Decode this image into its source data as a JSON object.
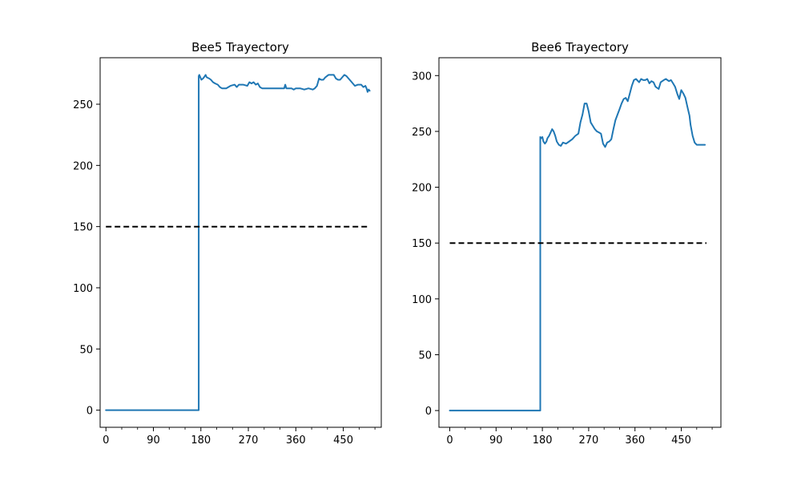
{
  "chart_data": [
    {
      "type": "line",
      "title": "Bee5 Trayectory",
      "xlabel": "",
      "ylabel": "",
      "xlim": [
        -11,
        522
      ],
      "ylim": [
        -14,
        288
      ],
      "x_ticks": [
        0,
        90,
        180,
        270,
        360,
        450
      ],
      "x_minor_ticks": [
        30,
        60,
        120,
        150,
        210,
        240,
        300,
        330,
        390,
        420,
        480,
        510
      ],
      "y_ticks": [
        0,
        50,
        100,
        150,
        200,
        250
      ],
      "grid": false,
      "series": [
        {
          "color": "#1f77b4",
          "style": "solid",
          "x": [
            0,
            176,
            176,
            177,
            180,
            181,
            184,
            186,
            189,
            191,
            196,
            199,
            203,
            207,
            212,
            216,
            220,
            228,
            236,
            244,
            248,
            252,
            260,
            268,
            272,
            276,
            280,
            284,
            288,
            292,
            296,
            300,
            310,
            320,
            330,
            338,
            340,
            342,
            346,
            352,
            356,
            360,
            368,
            376,
            384,
            392,
            396,
            400,
            404,
            408,
            412,
            416,
            422,
            428,
            432,
            436,
            440,
            444,
            448,
            452,
            456,
            460,
            466,
            472,
            478,
            484,
            488,
            492,
            494,
            496,
            498,
            500
          ],
          "y": [
            0,
            0,
            273,
            274,
            271,
            270,
            271,
            272,
            274,
            272,
            271,
            270,
            268,
            267,
            266,
            264,
            263,
            263,
            265,
            266,
            264,
            266,
            266,
            265,
            268,
            267,
            268,
            266,
            267,
            264,
            263,
            263,
            263,
            263,
            263,
            263,
            266,
            263,
            263,
            263,
            262,
            263,
            263,
            262,
            263,
            262,
            263,
            265,
            271,
            270,
            270,
            272,
            274,
            274,
            274,
            271,
            270,
            270,
            272,
            274,
            273,
            271,
            268,
            265,
            266,
            266,
            264,
            265,
            263,
            260,
            262,
            261
          ]
        },
        {
          "color": "#000000",
          "style": "dashed",
          "x": [
            0,
            499
          ],
          "y": [
            150,
            150
          ]
        }
      ]
    },
    {
      "type": "line",
      "title": "Bee6 Trayectory",
      "xlabel": "",
      "ylabel": "",
      "xlim": [
        -21,
        527
      ],
      "ylim": [
        -15,
        316
      ],
      "x_ticks": [
        0,
        90,
        180,
        270,
        360,
        450
      ],
      "x_minor_ticks": [
        30,
        60,
        120,
        150,
        210,
        240,
        300,
        330,
        390,
        420,
        480,
        510
      ],
      "y_ticks": [
        0,
        50,
        100,
        150,
        200,
        250,
        300
      ],
      "grid": false,
      "series": [
        {
          "color": "#1f77b4",
          "style": "solid",
          "x": [
            0,
            176,
            176,
            178,
            180,
            182,
            185,
            188,
            190,
            193,
            196,
            199,
            202,
            205,
            208,
            212,
            216,
            220,
            226,
            232,
            238,
            244,
            250,
            254,
            258,
            262,
            266,
            270,
            274,
            278,
            282,
            286,
            290,
            294,
            298,
            302,
            306,
            310,
            314,
            318,
            322,
            326,
            330,
            334,
            338,
            342,
            346,
            350,
            354,
            358,
            362,
            368,
            372,
            376,
            380,
            384,
            388,
            392,
            396,
            400,
            406,
            410,
            416,
            420,
            426,
            430,
            434,
            438,
            442,
            446,
            450,
            454,
            458,
            462,
            466,
            468,
            472,
            476,
            480,
            484,
            488,
            490,
            494,
            496
          ],
          "y": [
            0,
            0,
            245,
            244,
            245,
            241,
            239,
            241,
            244,
            246,
            249,
            252,
            250,
            246,
            241,
            238,
            237,
            240,
            239,
            241,
            243,
            246,
            248,
            258,
            265,
            275,
            275,
            268,
            258,
            255,
            252,
            250,
            249,
            248,
            239,
            236,
            240,
            241,
            243,
            252,
            260,
            265,
            270,
            275,
            279,
            280,
            277,
            284,
            291,
            296,
            297,
            294,
            297,
            296,
            296,
            297,
            293,
            295,
            294,
            290,
            288,
            294,
            296,
            297,
            295,
            296,
            293,
            290,
            284,
            279,
            287,
            284,
            280,
            272,
            264,
            256,
            246,
            240,
            238,
            238,
            238,
            238,
            238,
            238
          ]
        },
        {
          "color": "#000000",
          "style": "dashed",
          "x": [
            0,
            499
          ],
          "y": [
            150,
            150
          ]
        }
      ]
    }
  ]
}
